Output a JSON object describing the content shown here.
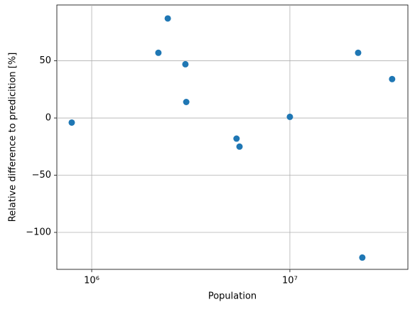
{
  "chart_data": {
    "type": "scatter",
    "x_label": "Population",
    "y_label": "Relative difference to predicition [%]",
    "x": [
      793000,
      2170000,
      2420000,
      2970000,
      3000000,
      5380000,
      5570000,
      10000000,
      22100000,
      23200000,
      32800000
    ],
    "values": [
      -4,
      57,
      87,
      47,
      14,
      -18,
      -25,
      1,
      57,
      -122,
      34
    ],
    "color": "#1f77b4",
    "xscale": "log",
    "xlim": [
      667000,
      39400000
    ],
    "ylim": [
      -132.3,
      98.8
    ],
    "xticks": [
      {
        "value": 1000000,
        "label": "10⁶"
      },
      {
        "value": 10000000,
        "label": "10⁷"
      }
    ],
    "yticks": [
      {
        "value": -100,
        "label": "−100"
      },
      {
        "value": -50,
        "label": "−50"
      },
      0,
      50
    ],
    "grid": true
  }
}
